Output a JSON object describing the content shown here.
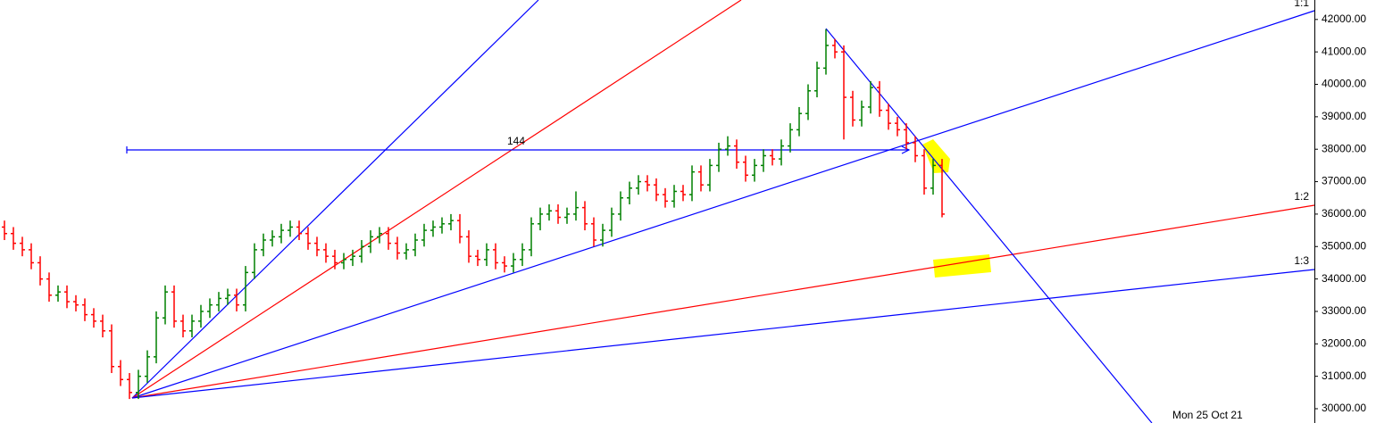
{
  "chart_data": {
    "type": "ohlc",
    "open": [
      35600,
      35400,
      35100,
      34900,
      34500,
      34000,
      33500,
      33600,
      33300,
      33200,
      32900,
      32700,
      32400,
      31300,
      30900,
      30500,
      31000,
      31600,
      32800,
      33600,
      32700,
      32400,
      32700,
      33000,
      33200,
      33400,
      33500,
      33200,
      34200,
      34900,
      35200,
      35300,
      35500,
      35600,
      35400,
      35100,
      34900,
      34700,
      34500,
      34600,
      34700,
      35000,
      35300,
      35400,
      35100,
      34800,
      34900,
      35200,
      35500,
      35600,
      35700,
      35800,
      35300,
      34700,
      34600,
      34900,
      34500,
      34400,
      34600,
      34900,
      35700,
      36000,
      36100,
      35900,
      36000,
      36200,
      35700,
      35200,
      35500,
      36000,
      36500,
      36800,
      37000,
      36900,
      36600,
      36400,
      36700,
      36600,
      37300,
      36900,
      37500,
      38000,
      38100,
      37600,
      37200,
      37500,
      37800,
      37700,
      38100,
      38600,
      39100,
      39800,
      40500,
      41200,
      41000,
      39600,
      38900,
      39300,
      39900,
      39200,
      38800,
      38600,
      38200,
      37800,
      36800,
      37500
    ],
    "high": [
      35800,
      35600,
      35300,
      35100,
      34700,
      34200,
      33800,
      33800,
      33500,
      33400,
      33100,
      32900,
      32600,
      31500,
      31100,
      31200,
      31800,
      33000,
      33800,
      33800,
      32900,
      32900,
      33200,
      33400,
      33600,
      33700,
      33700,
      34400,
      35100,
      35400,
      35500,
      35700,
      35800,
      35800,
      35600,
      35300,
      35100,
      34900,
      34800,
      34900,
      35200,
      35500,
      35600,
      35600,
      35300,
      35100,
      35400,
      35700,
      35800,
      35900,
      36000,
      36000,
      35500,
      34900,
      35100,
      35100,
      34700,
      34800,
      35100,
      35900,
      36200,
      36300,
      36300,
      36200,
      36700,
      36400,
      35900,
      35700,
      36200,
      36700,
      37000,
      37200,
      37200,
      37100,
      36800,
      36900,
      36900,
      37500,
      37500,
      37700,
      38200,
      38400,
      38300,
      37800,
      37700,
      38000,
      38000,
      38300,
      38800,
      39300,
      40000,
      40700,
      41700,
      41400,
      41200,
      39800,
      39500,
      40100,
      40100,
      39400,
      39000,
      38800,
      38400,
      38000,
      37700,
      37700
    ],
    "low": [
      35200,
      34900,
      34700,
      34300,
      33800,
      33300,
      33300,
      33100,
      33000,
      32700,
      32500,
      32200,
      31100,
      30700,
      30300,
      30300,
      30800,
      31400,
      32600,
      32500,
      32200,
      32200,
      32500,
      32800,
      33000,
      33200,
      33000,
      33000,
      34000,
      34700,
      35000,
      35100,
      35300,
      35200,
      34900,
      34700,
      34500,
      34300,
      34300,
      34400,
      34500,
      34800,
      35100,
      34900,
      34600,
      34600,
      34700,
      35000,
      35300,
      35400,
      35500,
      35100,
      34500,
      34400,
      34400,
      34300,
      34200,
      34200,
      34400,
      34700,
      35500,
      35800,
      35700,
      35700,
      35800,
      35500,
      35000,
      35000,
      35300,
      35800,
      36300,
      36600,
      36700,
      36400,
      36200,
      36200,
      36400,
      36400,
      36700,
      36700,
      37300,
      37800,
      37400,
      37000,
      37000,
      37300,
      37500,
      37500,
      37900,
      38400,
      38900,
      39600,
      40300,
      40800,
      38300,
      38700,
      38700,
      39100,
      39000,
      38600,
      38400,
      38000,
      37600,
      36600,
      36600,
      35900
    ],
    "close": [
      35400,
      35100,
      34900,
      34500,
      34000,
      33500,
      33600,
      33300,
      33200,
      32900,
      32700,
      32400,
      31300,
      30900,
      30500,
      31000,
      31600,
      32800,
      33600,
      32700,
      32400,
      32700,
      33000,
      33200,
      33400,
      33500,
      33200,
      34200,
      34900,
      35200,
      35300,
      35500,
      35600,
      35400,
      35100,
      34900,
      34700,
      34500,
      34600,
      34700,
      35000,
      35300,
      35400,
      35100,
      34800,
      34900,
      35200,
      35500,
      35600,
      35700,
      35800,
      35300,
      34700,
      34600,
      34900,
      34500,
      34400,
      34600,
      34900,
      35700,
      36000,
      36100,
      35900,
      36000,
      36200,
      35700,
      35200,
      35500,
      36000,
      36500,
      36800,
      37000,
      36900,
      36600,
      36400,
      36700,
      36600,
      37300,
      36900,
      37500,
      38000,
      38100,
      37600,
      37200,
      37500,
      37800,
      37700,
      38100,
      38600,
      39100,
      39800,
      40500,
      41200,
      41000,
      39600,
      38900,
      39300,
      39900,
      39200,
      38800,
      38600,
      38200,
      37800,
      36800,
      37500,
      36000
    ],
    "up_color": "#008000",
    "down_color": "#ff0000",
    "ylim": [
      29560,
      42600
    ],
    "yticks": [
      {
        "value": 30000,
        "label": "30000.00"
      },
      {
        "value": 31000,
        "label": "31000.00"
      },
      {
        "value": 32000,
        "label": "32000.00"
      },
      {
        "value": 33000,
        "label": "33000.00"
      },
      {
        "value": 34000,
        "label": "34000.00"
      },
      {
        "value": 35000,
        "label": "35000.00"
      },
      {
        "value": 36000,
        "label": "36000.00"
      },
      {
        "value": 37000,
        "label": "37000.00"
      },
      {
        "value": 38000,
        "label": "38000.00"
      },
      {
        "value": 39000,
        "label": "39000.00"
      },
      {
        "value": 40000,
        "label": "40000.00"
      },
      {
        "value": 41000,
        "label": "41000.00"
      },
      {
        "value": 42000,
        "label": "42000.00"
      }
    ],
    "annotations": [
      "1:1",
      "1:2",
      "1:3",
      "144",
      "Mon 25 Oct 21"
    ]
  }
}
